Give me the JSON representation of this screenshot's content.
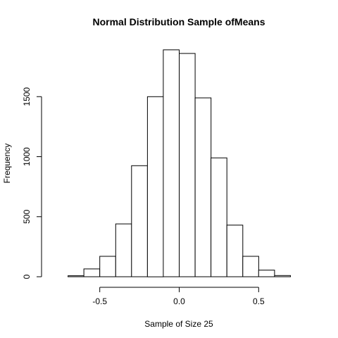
{
  "chart_data": {
    "type": "bar",
    "title": "Normal Distribution Sample ofMeans",
    "xlabel": "Sample of Size 25",
    "ylabel": "Frequency",
    "bin_width": 0.1,
    "bins": [
      {
        "start": -0.7,
        "end": -0.6,
        "count": 8
      },
      {
        "start": -0.6,
        "end": -0.5,
        "count": 65
      },
      {
        "start": -0.5,
        "end": -0.4,
        "count": 170
      },
      {
        "start": -0.4,
        "end": -0.3,
        "count": 440
      },
      {
        "start": -0.3,
        "end": -0.2,
        "count": 925
      },
      {
        "start": -0.2,
        "end": -0.1,
        "count": 1500
      },
      {
        "start": -0.1,
        "end": 0.0,
        "count": 1890
      },
      {
        "start": 0.0,
        "end": 0.1,
        "count": 1860
      },
      {
        "start": 0.1,
        "end": 0.2,
        "count": 1490
      },
      {
        "start": 0.2,
        "end": 0.3,
        "count": 990
      },
      {
        "start": 0.3,
        "end": 0.4,
        "count": 430
      },
      {
        "start": 0.4,
        "end": 0.5,
        "count": 170
      },
      {
        "start": 0.5,
        "end": 0.6,
        "count": 55
      },
      {
        "start": 0.6,
        "end": 0.7,
        "count": 10
      }
    ],
    "xlim": [
      -0.8,
      0.8
    ],
    "ylim": [
      0,
      2000
    ],
    "x_ticks": [
      -0.5,
      0.0,
      0.5
    ],
    "x_tick_labels": [
      "-0.5",
      "0.0",
      "0.5"
    ],
    "y_ticks": [
      0,
      500,
      1000,
      1500
    ],
    "y_tick_labels": [
      "0",
      "500",
      "1000",
      "1500"
    ],
    "grid": false,
    "legend": "none",
    "bar_fill": "#ffffff",
    "bar_stroke": "#000000"
  }
}
